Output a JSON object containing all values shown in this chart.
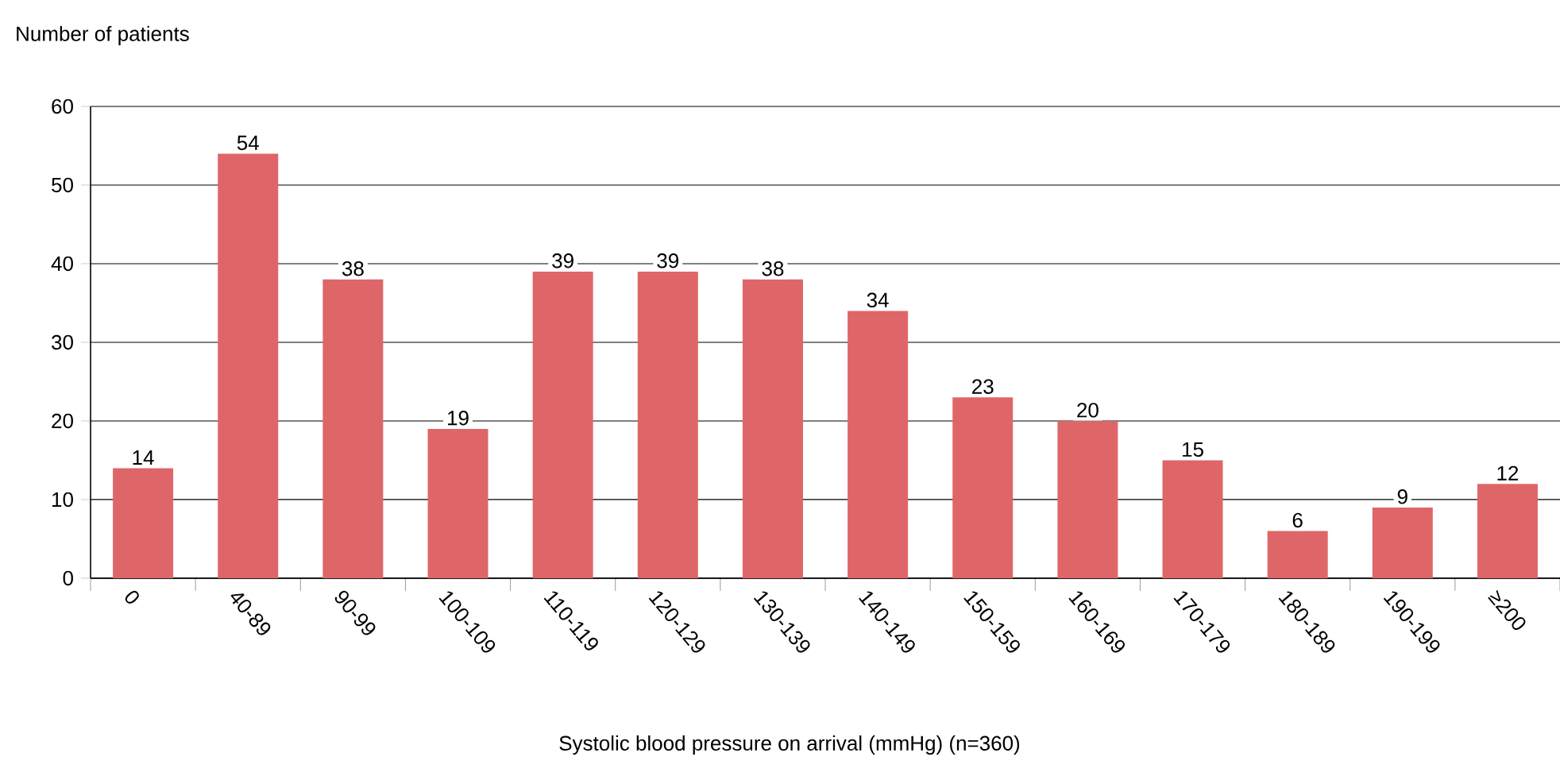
{
  "chart_data": {
    "type": "bar",
    "xlabel": "Systolic blood pressure on arrival (mmHg) (n=360)",
    "ylabel": "Number of patients",
    "categories": [
      "0",
      "40-89",
      "90-99",
      "100-109",
      "110-119",
      "120-129",
      "130-139",
      "140-149",
      "150-159",
      "160-169",
      "170-179",
      "180-189",
      "190-199",
      "≥200"
    ],
    "values": [
      14,
      54,
      38,
      19,
      39,
      39,
      38,
      34,
      23,
      20,
      15,
      6,
      9,
      12
    ],
    "color": "#df6668",
    "ylim": [
      0,
      60
    ],
    "yticks": [
      0,
      10,
      20,
      30,
      40,
      50,
      60
    ],
    "grid": "y",
    "data_labels": true
  }
}
